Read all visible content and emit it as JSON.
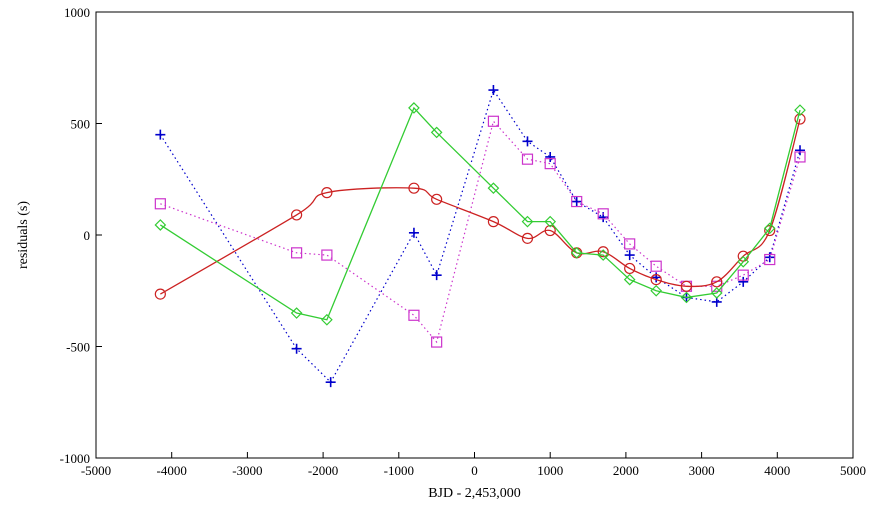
{
  "chart_data": {
    "type": "line",
    "xlabel": "BJD - 2,453,000",
    "ylabel": "residuals (s)",
    "xlim": [
      -5000,
      5000
    ],
    "ylim": [
      -1000,
      1000
    ],
    "xticks": [
      -5000,
      -4000,
      -3000,
      -2000,
      -1000,
      0,
      1000,
      2000,
      3000,
      4000,
      5000
    ],
    "yticks": [
      -1000,
      -500,
      0,
      500,
      1000
    ],
    "grid": false,
    "legend": "none",
    "series": [
      {
        "color": "#0000cc",
        "marker": "plus",
        "line": "dotted",
        "points": [
          [
            -4150,
            450
          ],
          [
            -2350,
            -510
          ],
          [
            -1900,
            -660
          ],
          [
            -800,
            10
          ],
          [
            -500,
            -180
          ],
          [
            250,
            650
          ],
          [
            700,
            420
          ],
          [
            1000,
            350
          ],
          [
            1350,
            150
          ],
          [
            1700,
            80
          ],
          [
            2050,
            -90
          ],
          [
            2400,
            -190
          ],
          [
            2800,
            -280
          ],
          [
            3200,
            -300
          ],
          [
            3550,
            -210
          ],
          [
            3900,
            -100
          ],
          [
            4300,
            380
          ]
        ]
      },
      {
        "color": "#cc33cc",
        "marker": "square",
        "line": "dotted",
        "points": [
          [
            -4150,
            140
          ],
          [
            -2350,
            -80
          ],
          [
            -1950,
            -90
          ],
          [
            -800,
            -360
          ],
          [
            -500,
            -480
          ],
          [
            250,
            510
          ],
          [
            700,
            340
          ],
          [
            1000,
            320
          ],
          [
            1350,
            150
          ],
          [
            1700,
            95
          ],
          [
            2050,
            -40
          ],
          [
            2400,
            -140
          ],
          [
            2800,
            -230
          ],
          [
            3200,
            -230
          ],
          [
            3550,
            -180
          ],
          [
            3900,
            -110
          ],
          [
            4300,
            350
          ]
        ]
      },
      {
        "color": "#cc2222",
        "marker": "circle",
        "line": "solid",
        "smooth": true,
        "points": [
          [
            -4150,
            -265
          ],
          [
            -2350,
            90
          ],
          [
            -1950,
            190
          ],
          [
            -800,
            210
          ],
          [
            -500,
            160
          ],
          [
            250,
            60
          ],
          [
            700,
            -15
          ],
          [
            1000,
            20
          ],
          [
            1350,
            -80
          ],
          [
            1700,
            -75
          ],
          [
            2050,
            -150
          ],
          [
            2400,
            -200
          ],
          [
            2800,
            -230
          ],
          [
            3200,
            -210
          ],
          [
            3550,
            -95
          ],
          [
            3900,
            20
          ],
          [
            4300,
            520
          ]
        ]
      },
      {
        "color": "#33cc33",
        "marker": "diamond",
        "line": "solid",
        "points": [
          [
            -4150,
            45
          ],
          [
            -2350,
            -350
          ],
          [
            -1950,
            -380
          ],
          [
            -800,
            570
          ],
          [
            -500,
            460
          ],
          [
            250,
            210
          ],
          [
            700,
            60
          ],
          [
            1000,
            60
          ],
          [
            1350,
            -80
          ],
          [
            1700,
            -90
          ],
          [
            2050,
            -200
          ],
          [
            2400,
            -250
          ],
          [
            2800,
            -280
          ],
          [
            3200,
            -260
          ],
          [
            3550,
            -120
          ],
          [
            3900,
            30
          ],
          [
            4300,
            560
          ]
        ]
      }
    ]
  }
}
